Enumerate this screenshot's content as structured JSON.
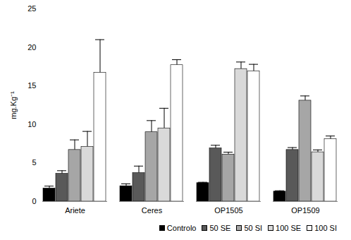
{
  "chart_data": {
    "type": "bar",
    "y_label": "mg.Kg⁻¹",
    "categories": [
      "Ariete",
      "Ceres",
      "OP1505",
      "OP1509"
    ],
    "series": [
      {
        "name": "Controlo",
        "color": "#000000",
        "values": [
          1.7,
          2.0,
          2.4,
          1.3
        ],
        "errors": [
          0.3,
          0.3,
          0.1,
          0.1
        ]
      },
      {
        "name": "50 SE",
        "color": "#595959",
        "values": [
          3.6,
          3.7,
          6.9,
          6.7
        ],
        "errors": [
          0.4,
          0.9,
          0.4,
          0.3
        ]
      },
      {
        "name": "50 SI",
        "color": "#a6a6a6",
        "values": [
          6.7,
          9.0,
          6.1,
          13.1
        ],
        "errors": [
          1.3,
          1.5,
          0.3,
          0.6
        ]
      },
      {
        "name": "100 SE",
        "color": "#d9d9d9",
        "values": [
          7.1,
          9.5,
          17.2,
          6.4
        ],
        "errors": [
          2.0,
          2.6,
          0.9,
          0.3
        ]
      },
      {
        "name": "100 SI",
        "color": "#ffffff",
        "values": [
          16.7,
          17.7,
          16.9,
          8.1
        ],
        "errors": [
          4.3,
          0.7,
          0.9,
          0.4
        ]
      }
    ],
    "ylim": [
      0,
      25
    ],
    "yticks": [
      0,
      5,
      10,
      15,
      20,
      25
    ],
    "grid": false,
    "legend": "bottom"
  }
}
